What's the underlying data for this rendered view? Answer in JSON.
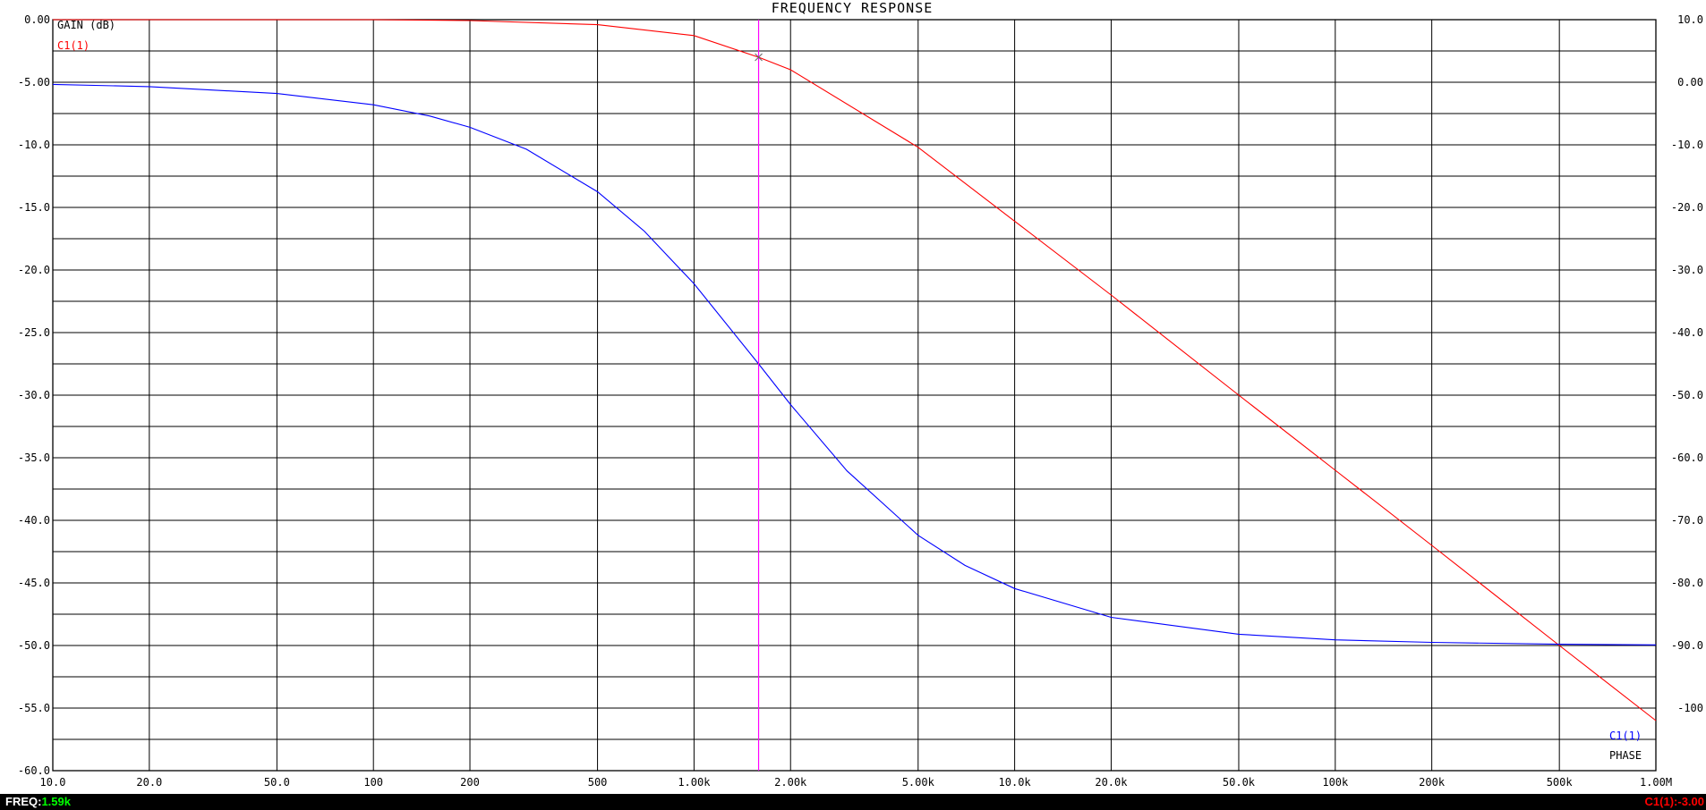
{
  "chart_data": {
    "type": "line",
    "title": "FREQUENCY RESPONSE",
    "x_axis": {
      "scale": "log",
      "range": [
        10,
        1000000
      ],
      "tick_values": [
        10,
        20,
        50,
        100,
        200,
        500,
        1000,
        2000,
        5000,
        10000,
        20000,
        50000,
        100000,
        200000,
        500000,
        1000000
      ],
      "tick_labels": [
        "10.0",
        "20.0",
        "50.0",
        "100",
        "200",
        "500",
        "1.00k",
        "2.00k",
        "5.00k",
        "10.0k",
        "20.0k",
        "50.0k",
        "100k",
        "200k",
        "500k",
        "1.00M"
      ]
    },
    "y_left": {
      "label": "GAIN (dB)",
      "range": [
        -60,
        0
      ],
      "tick_values": [
        0,
        -5,
        -10,
        -15,
        -20,
        -25,
        -30,
        -35,
        -40,
        -45,
        -50,
        -55,
        -60
      ],
      "tick_labels": [
        "0.00",
        "-5.00",
        "-10.0",
        "-15.0",
        "-20.0",
        "-25.0",
        "-30.0",
        "-35.0",
        "-40.0",
        "-45.0",
        "-50.0",
        "-55.0",
        "-60.0"
      ]
    },
    "y_right": {
      "label": "PHASE",
      "range": [
        -110,
        10
      ],
      "tick_values": [
        10,
        0,
        -10,
        -20,
        -30,
        -40,
        -50,
        -60,
        -70,
        -80,
        -90,
        -100
      ],
      "tick_labels": [
        "10.0",
        "0.00",
        "-10.0",
        "-20.0",
        "-30.0",
        "-40.0",
        "-50.0",
        "-60.0",
        "-70.0",
        "-80.0",
        "-90.0",
        "-100"
      ]
    },
    "grid": true,
    "series": [
      {
        "name": "C1(1)",
        "quantity": "gain",
        "axis": "left",
        "color": "#ff0000",
        "x": [
          10,
          100,
          200,
          500,
          1000,
          1590,
          2000,
          5000,
          10000,
          20000,
          50000,
          100000,
          200000,
          500000,
          1000000
        ],
        "values": [
          0,
          0,
          -0.07,
          -0.4,
          -1.27,
          -3.0,
          -4.0,
          -10.2,
          -16.1,
          -22.0,
          -30.0,
          -36.0,
          -42.0,
          -50.0,
          -56.0
        ]
      },
      {
        "name": "C1(1)",
        "quantity": "phase",
        "axis": "right",
        "color": "#0000ff",
        "x": [
          10,
          20,
          50,
          100,
          150,
          200,
          300,
          500,
          700,
          1000,
          1590,
          2000,
          3000,
          5000,
          7000,
          10000,
          20000,
          50000,
          100000,
          200000,
          500000,
          1000000
        ],
        "values": [
          -0.35,
          -0.7,
          -1.8,
          -3.6,
          -5.4,
          -7.2,
          -10.7,
          -17.5,
          -23.8,
          -32.2,
          -45.0,
          -51.5,
          -62.1,
          -72.4,
          -77.2,
          -80.9,
          -85.5,
          -88.2,
          -89.1,
          -89.5,
          -89.8,
          -89.9
        ]
      }
    ],
    "cursor": {
      "x": 1590,
      "color": "#ff00ff",
      "marker_on_series": 0
    }
  },
  "legend": {
    "gain_series_label": "C1(1)",
    "phase_series_label": "C1(1)"
  },
  "status": {
    "freq_label": "FREQ:",
    "freq_value": "1.59k",
    "probe_label": "C1(1):",
    "probe_value": "-3.00",
    "colors": {
      "label": "#ffffff",
      "freq_value": "#00ff00",
      "probe": "#ff0000"
    }
  }
}
